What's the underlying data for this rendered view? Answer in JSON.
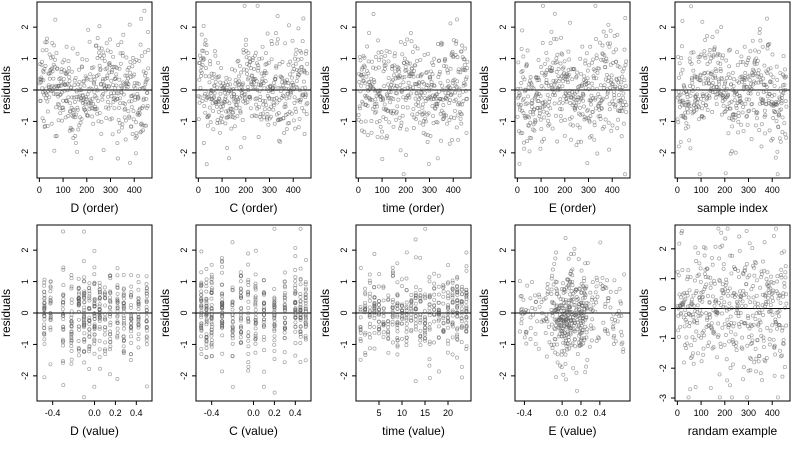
{
  "chart_data": [
    {
      "type": "scatter",
      "series": "order",
      "ylabel": "residuals",
      "xlabel": "D (order)",
      "xlim": [
        -10,
        475
      ],
      "ylim": [
        -2.8,
        2.8
      ],
      "xticks": [
        0,
        100,
        200,
        300,
        400
      ],
      "yticks": [
        -2,
        -1,
        0,
        1,
        2
      ],
      "yticklabels": [
        "-2",
        "-1",
        "0",
        "1",
        "2"
      ],
      "zero_line": true,
      "n": 460,
      "x_range": [
        1,
        460
      ]
    },
    {
      "type": "scatter",
      "series": "order",
      "ylabel": "residuals",
      "xlabel": "C (order)",
      "xlim": [
        -10,
        475
      ],
      "ylim": [
        -2.8,
        2.8
      ],
      "xticks": [
        0,
        100,
        200,
        300,
        400
      ],
      "yticks": [
        -2,
        -1,
        0,
        1,
        2
      ],
      "yticklabels": [
        "-2",
        "-1",
        "0",
        "1",
        "2"
      ],
      "zero_line": true,
      "n": 460,
      "x_range": [
        1,
        460
      ]
    },
    {
      "type": "scatter",
      "series": "order",
      "ylabel": "residuals",
      "xlabel": "time (order)",
      "xlim": [
        -10,
        475
      ],
      "ylim": [
        -2.8,
        2.8
      ],
      "xticks": [
        0,
        100,
        200,
        300,
        400
      ],
      "yticks": [
        -2,
        -1,
        0,
        1,
        2
      ],
      "yticklabels": [
        "-2",
        "-1",
        "0",
        "1",
        "2"
      ],
      "zero_line": true,
      "n": 460,
      "x_range": [
        1,
        460
      ]
    },
    {
      "type": "scatter",
      "series": "order",
      "ylabel": "residuals",
      "xlabel": "E (order)",
      "xlim": [
        -10,
        475
      ],
      "ylim": [
        -2.8,
        2.8
      ],
      "xticks": [
        0,
        100,
        200,
        300,
        400
      ],
      "yticks": [
        -2,
        -1,
        0,
        1,
        2
      ],
      "yticklabels": [
        "-2",
        "-1",
        "0",
        "1",
        "2"
      ],
      "zero_line": true,
      "n": 460,
      "x_range": [
        1,
        460
      ]
    },
    {
      "type": "scatter",
      "series": "order",
      "ylabel": "residuals",
      "xlabel": "sample index",
      "xlim": [
        -10,
        475
      ],
      "ylim": [
        -2.8,
        2.8
      ],
      "xticks": [
        0,
        100,
        200,
        300,
        400
      ],
      "yticks": [
        -2,
        -1,
        0,
        1,
        2
      ],
      "yticklabels": [
        "-2",
        "-1",
        "0",
        "1",
        "2"
      ],
      "zero_line": true,
      "n": 460,
      "x_range": [
        1,
        460
      ]
    },
    {
      "type": "scatter",
      "series": "value_discrete",
      "ylabel": "residuals",
      "xlabel": "D (value)",
      "xlim": [
        -0.55,
        0.55
      ],
      "ylim": [
        -2.8,
        2.8
      ],
      "xticks": [
        -0.4,
        0,
        0.2,
        0.4
      ],
      "xticklabels": [
        "-0.4",
        "0.0",
        "0.2",
        "0.4"
      ],
      "yticks": [
        -2,
        -1,
        0,
        1,
        2
      ],
      "yticklabels": [
        "-2",
        "-1",
        "0",
        "1",
        "2"
      ],
      "zero_line": true,
      "n": 460,
      "x_levels": [
        -0.48,
        -0.42,
        -0.3,
        -0.22,
        -0.15,
        -0.1,
        -0.05,
        0,
        0.05,
        0.1,
        0.15,
        0.22,
        0.28,
        0.35,
        0.42,
        0.5
      ]
    },
    {
      "type": "scatter",
      "series": "value_discrete",
      "ylabel": "residuals",
      "xlabel": "C (value)",
      "xlim": [
        -0.55,
        0.55
      ],
      "ylim": [
        -2.8,
        2.8
      ],
      "xticks": [
        -0.4,
        0,
        0.2,
        0.4
      ],
      "xticklabels": [
        "-0.4",
        "0.0",
        "0.2",
        "0.4"
      ],
      "yticks": [
        -2,
        -1,
        0,
        1,
        2
      ],
      "yticklabels": [
        "-2",
        "-1",
        "0",
        "1",
        "2"
      ],
      "zero_line": true,
      "n": 460,
      "x_levels": [
        -0.5,
        -0.45,
        -0.4,
        -0.3,
        -0.2,
        -0.12,
        -0.05,
        0.02,
        0.1,
        0.2,
        0.3,
        0.4,
        0.45,
        0.5
      ]
    },
    {
      "type": "scatter",
      "series": "value_discrete",
      "ylabel": "residuals",
      "xlabel": "time (value)",
      "xlim": [
        0,
        25
      ],
      "ylim": [
        -2.8,
        2.8
      ],
      "xticks": [
        5,
        10,
        15,
        20
      ],
      "yticks": [
        -2,
        -1,
        0,
        1,
        2
      ],
      "yticklabels": [
        "-2",
        "-1",
        "0",
        "1",
        "2"
      ],
      "zero_line": true,
      "n": 460,
      "x_levels": [
        1,
        2,
        3,
        4,
        5,
        6,
        7,
        8,
        9,
        10,
        11,
        12,
        13,
        14,
        15,
        16,
        17,
        18,
        19,
        20,
        21,
        22,
        23,
        24
      ]
    },
    {
      "type": "scatter",
      "series": "value_cluster",
      "ylabel": "residuals",
      "xlabel": "E (value)",
      "xlim": [
        -0.5,
        0.72
      ],
      "ylim": [
        -2.8,
        2.8
      ],
      "xticks": [
        -0.4,
        0,
        0.2,
        0.4
      ],
      "xticklabels": [
        "-0.4",
        "0.0",
        "0.2",
        "0.4"
      ],
      "yticks": [
        -2,
        -1,
        0,
        1,
        2
      ],
      "yticklabels": [
        "-2",
        "-1",
        "0",
        "1",
        "2"
      ],
      "zero_line": true,
      "n": 460,
      "cluster_center": 0.1
    },
    {
      "type": "scatter",
      "series": "random",
      "ylabel": "residuals",
      "xlabel": "randam example",
      "xlim": [
        -10,
        475
      ],
      "ylim": [
        -3.1,
        2.8
      ],
      "xticks": [
        0,
        100,
        200,
        300,
        400
      ],
      "yticks": [
        -3,
        -2,
        -1,
        0,
        1,
        2
      ],
      "yticklabels": [
        "-3",
        "-2",
        "-1",
        "0",
        "1",
        "2"
      ],
      "zero_line": true,
      "n": 460,
      "x_range": [
        1,
        460
      ]
    }
  ]
}
